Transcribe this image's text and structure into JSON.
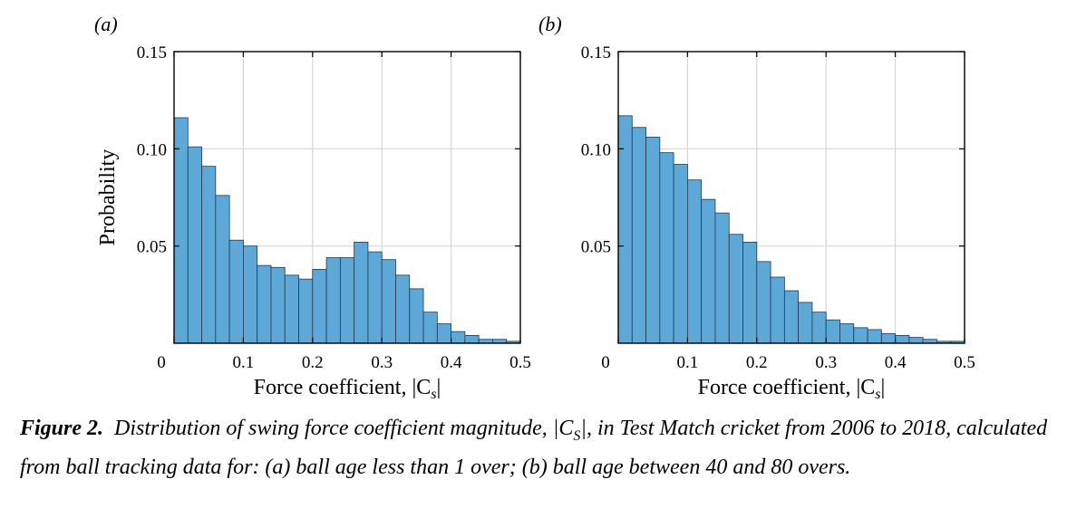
{
  "colors": {
    "bar": "#5ea8d8",
    "bar_edge": "#1f3a55",
    "grid": "#d6d6d6",
    "axis": "#000000"
  },
  "chart_data": [
    {
      "type": "bar",
      "panel_label": "(a)",
      "xlabel": "Force coefficient, |C",
      "xlabel_sub": "s",
      "xlabel_close": "|",
      "ylabel": "Probability",
      "xlim": [
        0,
        0.5
      ],
      "ylim": [
        0,
        0.15
      ],
      "xticks": [
        0,
        0.1,
        0.2,
        0.3,
        0.4,
        0.5
      ],
      "xtick_labels": [
        "0",
        "0.1",
        "0.2",
        "0.3",
        "0.4",
        "0.5"
      ],
      "yticks": [
        0.05,
        0.1,
        0.15
      ],
      "ytick_labels": [
        "0.05",
        "0.10",
        "0.15"
      ],
      "grid": true,
      "bin_width": 0.02,
      "bin_start": 0.0,
      "values": [
        0.116,
        0.101,
        0.091,
        0.076,
        0.053,
        0.05,
        0.04,
        0.039,
        0.035,
        0.033,
        0.038,
        0.044,
        0.044,
        0.052,
        0.047,
        0.043,
        0.035,
        0.028,
        0.016,
        0.01,
        0.006,
        0.004,
        0.002,
        0.002,
        0.001
      ]
    },
    {
      "type": "bar",
      "panel_label": "(b)",
      "xlabel": "Force coefficient, |C",
      "xlabel_sub": "s",
      "xlabel_close": "|",
      "ylabel": "",
      "xlim": [
        0,
        0.5
      ],
      "ylim": [
        0,
        0.15
      ],
      "xticks": [
        0,
        0.1,
        0.2,
        0.3,
        0.4,
        0.5
      ],
      "xtick_labels": [
        "0",
        "0.1",
        "0.2",
        "0.3",
        "0.4",
        "0.5"
      ],
      "yticks": [
        0.05,
        0.1,
        0.15
      ],
      "ytick_labels": [
        "0.05",
        "0.10",
        "0.15"
      ],
      "grid": true,
      "bin_width": 0.02,
      "bin_start": 0.0,
      "values": [
        0.117,
        0.111,
        0.106,
        0.098,
        0.092,
        0.084,
        0.074,
        0.067,
        0.056,
        0.052,
        0.042,
        0.034,
        0.027,
        0.021,
        0.016,
        0.012,
        0.01,
        0.008,
        0.007,
        0.005,
        0.004,
        0.003,
        0.002,
        0.001,
        0.001
      ]
    }
  ],
  "caption": {
    "label": "Figure 2.",
    "text_before": "Distribution of swing force coefficient magnitude, |C",
    "sub": "S",
    "text_after": "|, in Test Match cricket from 2006 to 2018, calculated from ball tracking data for: (a) ball age less than 1 over; (b) ball age between 40 and 80 overs."
  }
}
